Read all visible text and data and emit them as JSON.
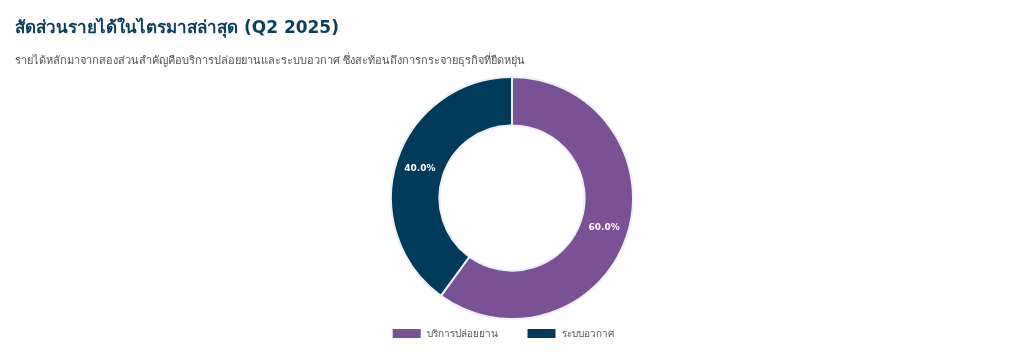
{
  "chart_data": {
    "type": "donut",
    "title": "สัดส่วนรายได้ในไตรมาสล่าสุด (Q2 2025)",
    "subtitle": "รายได้หลักมาจากสองส่วนสำคัญคือบริการปล่อยยานและระบบอวกาศ ซึ่งสะท้อนถึงการกระจายธุรกิจที่ยืดหยุ่น",
    "categories": [
      "บริการปล่อยยาน",
      "ระบบอวกาศ"
    ],
    "values": [
      60,
      40
    ],
    "colors": [
      "#7b5196",
      "#003b5c"
    ],
    "value_labels": [
      "60.0%",
      "40.0%"
    ],
    "legend": "bottom"
  }
}
